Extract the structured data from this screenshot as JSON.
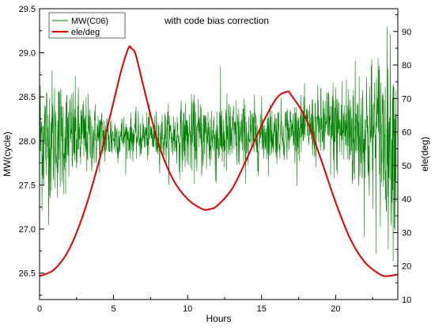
{
  "chart_data": {
    "type": "line",
    "title": "",
    "annotation": "with code bias correction",
    "xlabel": "Hours",
    "ylabel_left": "MW(cycle)",
    "ylabel_right": "ele(deg)",
    "xlim": [
      0,
      24.2
    ],
    "ylim_left": [
      26.2,
      29.5
    ],
    "ylim_right": [
      10,
      96.8
    ],
    "x_ticks": [
      0,
      5,
      10,
      15,
      20
    ],
    "y_ticks_left": [
      26.5,
      27.0,
      27.5,
      28.0,
      28.5,
      29.0,
      29.5
    ],
    "y_ticks_right": [
      10,
      20,
      30,
      40,
      50,
      60,
      70,
      80,
      90
    ],
    "x_tick_labels": [
      "0",
      "5",
      "10",
      "15",
      "20"
    ],
    "y_tick_labels_left": [
      "26.5",
      "27.0",
      "27.5",
      "28.0",
      "28.5",
      "29.0",
      "29.5"
    ],
    "y_tick_labels_right": [
      "10",
      "20",
      "30",
      "40",
      "50",
      "60",
      "70",
      "80",
      "90"
    ],
    "legend_position": "top-left",
    "grid": false,
    "series": [
      {
        "name": "MW(C06)",
        "axis": "left",
        "color": "#008000",
        "style": "noisy-line",
        "envelope": {
          "x": [
            0,
            2,
            4,
            6,
            8,
            10,
            12,
            14,
            16,
            18,
            20,
            22,
            24
          ],
          "mean": [
            28.05,
            28.05,
            28.05,
            28.05,
            28.05,
            28.05,
            28.05,
            28.05,
            28.1,
            28.15,
            28.15,
            28.1,
            28.05
          ],
          "sd": [
            0.42,
            0.3,
            0.18,
            0.12,
            0.14,
            0.2,
            0.25,
            0.2,
            0.16,
            0.16,
            0.28,
            0.42,
            0.55
          ]
        }
      },
      {
        "name": "ele/deg",
        "axis": "right",
        "color": "#e00000",
        "x": [
          0,
          1,
          2,
          3,
          4,
          5,
          5.5,
          6,
          6.2,
          6.5,
          7,
          8,
          9,
          10,
          11,
          11.5,
          12,
          13,
          14,
          15,
          16,
          16.7,
          17,
          18,
          19,
          20,
          21,
          22,
          23,
          23.5,
          24.2
        ],
        "values": [
          17,
          19,
          25,
          36,
          51,
          69,
          78,
          85,
          85,
          83,
          74,
          57,
          46,
          40,
          37,
          37,
          38,
          43,
          52,
          62,
          70,
          72,
          71,
          64,
          52,
          39,
          28,
          21,
          17.5,
          17,
          17.5
        ]
      }
    ]
  }
}
